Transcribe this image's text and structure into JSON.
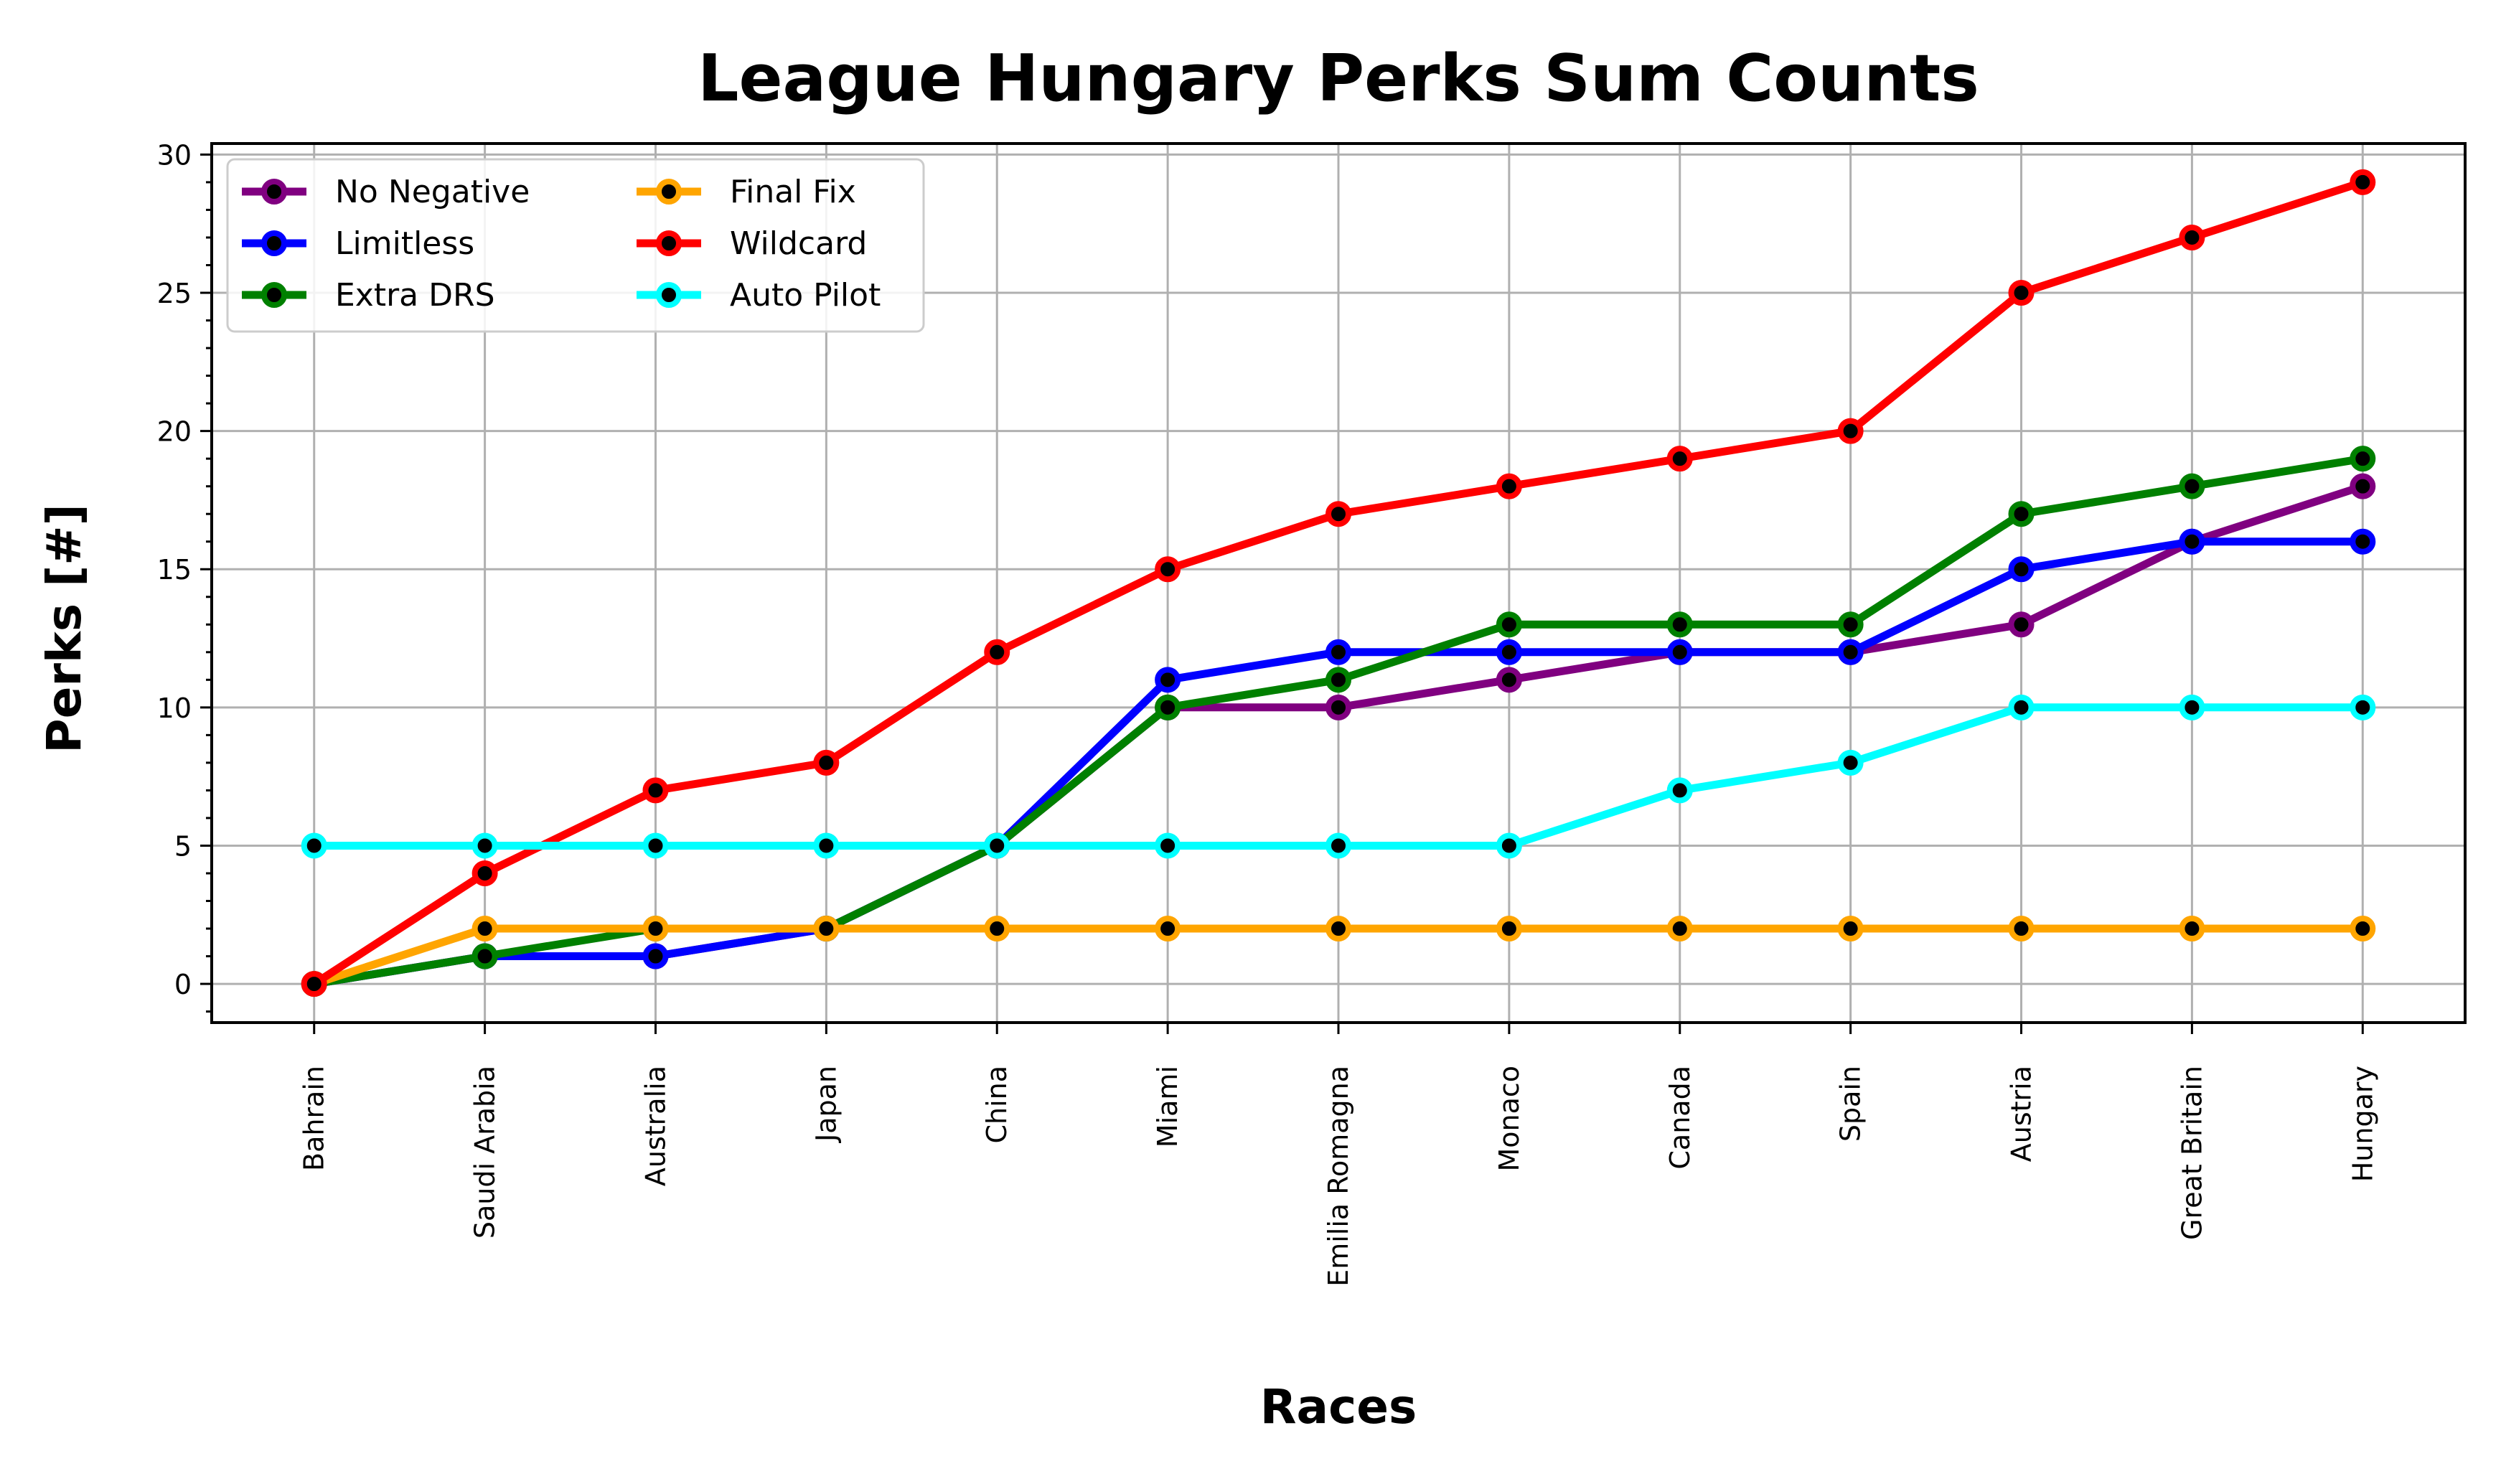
{
  "chart_data": {
    "type": "line",
    "title": "League Hungary Perks Sum Counts",
    "xlabel": "Races",
    "ylabel": "Perks [#]",
    "categories": [
      "Bahrain",
      "Saudi Arabia",
      "Australia",
      "Japan",
      "China",
      "Miami",
      "Emilia Romagna",
      "Monaco",
      "Canada",
      "Spain",
      "Austria",
      "Great Britain",
      "Hungary"
    ],
    "ylim": [
      -1.4,
      30.4
    ],
    "yticks": [
      0,
      5,
      10,
      15,
      20,
      25,
      30
    ],
    "grid": true,
    "legend_position": "top-left",
    "marker_color": "#000000",
    "series": [
      {
        "name": "No Negative",
        "color": "#800080",
        "values": [
          0,
          1,
          1,
          2,
          5,
          10,
          10,
          11,
          12,
          12,
          13,
          16,
          18
        ]
      },
      {
        "name": "Limitless",
        "color": "#0000ff",
        "values": [
          0,
          1,
          1,
          2,
          5,
          11,
          12,
          12,
          12,
          12,
          15,
          16,
          16
        ]
      },
      {
        "name": "Extra DRS",
        "color": "#008000",
        "values": [
          0,
          1,
          2,
          2,
          5,
          10,
          11,
          13,
          13,
          13,
          17,
          18,
          19
        ]
      },
      {
        "name": "Final Fix",
        "color": "#ffa500",
        "values": [
          0,
          2,
          2,
          2,
          2,
          2,
          2,
          2,
          2,
          2,
          2,
          2,
          2
        ]
      },
      {
        "name": "Wildcard",
        "color": "#ff0000",
        "values": [
          0,
          4,
          7,
          8,
          12,
          15,
          17,
          18,
          19,
          20,
          25,
          27,
          29
        ]
      },
      {
        "name": "Auto Pilot",
        "color": "#00ffff",
        "values": [
          5,
          5,
          5,
          5,
          5,
          5,
          5,
          5,
          7,
          8,
          10,
          10,
          10
        ]
      }
    ]
  }
}
